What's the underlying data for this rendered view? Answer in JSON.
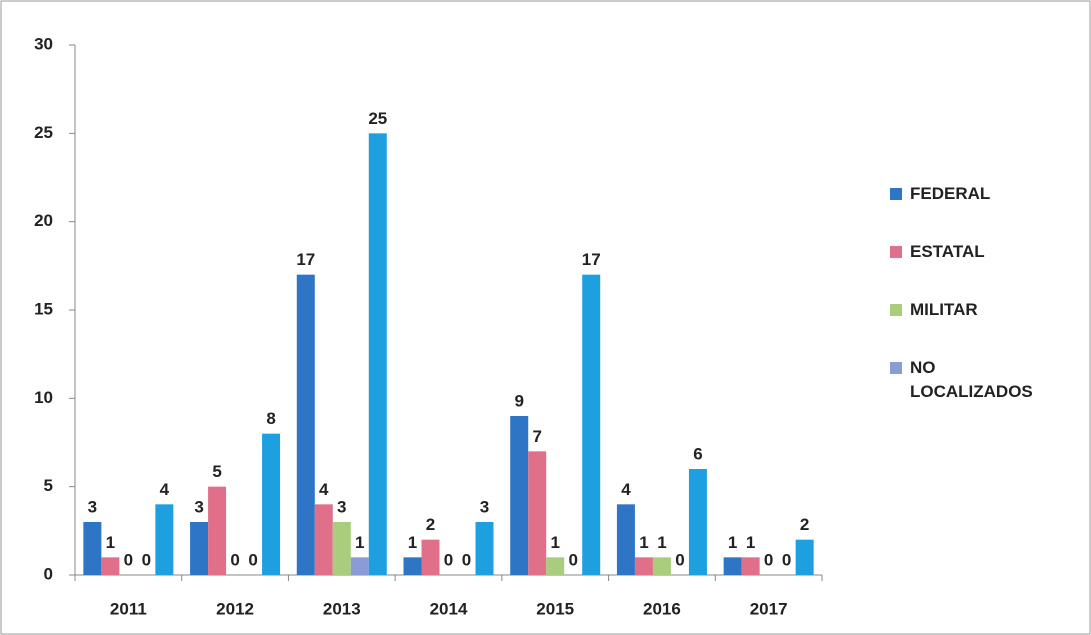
{
  "chart_data": {
    "type": "bar",
    "categories": [
      "2011",
      "2012",
      "2013",
      "2014",
      "2015",
      "2016",
      "2017"
    ],
    "series": [
      {
        "name": "FEDERAL",
        "color": "#2e75c6",
        "values": [
          3,
          3,
          17,
          1,
          9,
          4,
          1
        ]
      },
      {
        "name": "ESTATAL",
        "color": "#e0708a",
        "values": [
          1,
          5,
          4,
          2,
          7,
          1,
          1
        ]
      },
      {
        "name": "MILITAR",
        "color": "#a9cc7d",
        "values": [
          0,
          0,
          3,
          0,
          1,
          1,
          0
        ]
      },
      {
        "name": "NO LOCALIZADOS",
        "color": "#8a9bd6",
        "values": [
          0,
          0,
          1,
          0,
          0,
          0,
          0
        ]
      },
      {
        "color": "#1e9fe0",
        "values": [
          4,
          8,
          25,
          3,
          17,
          6,
          2
        ]
      }
    ],
    "ylim": [
      0,
      30
    ],
    "yticks": [
      0,
      5,
      10,
      15,
      20,
      25,
      30
    ]
  }
}
